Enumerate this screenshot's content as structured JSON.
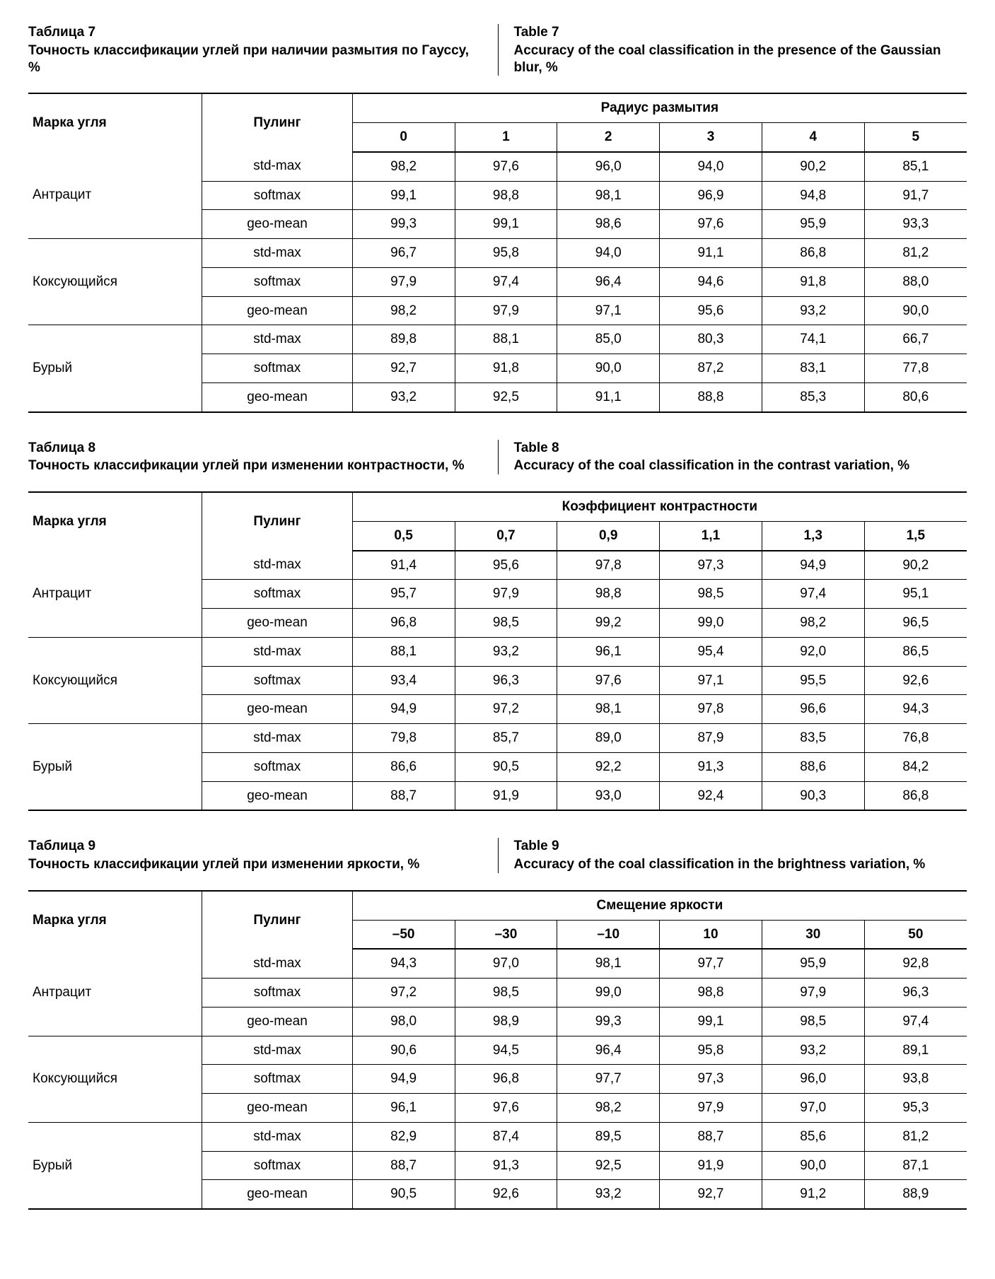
{
  "tables": [
    {
      "id": "t7",
      "caption_left_title": "Таблица 7",
      "caption_left_sub": "Точность классификации углей при наличии размытия по Гауссу, %",
      "caption_right_title": "Table 7",
      "caption_right_sub": "Accuracy of the coal classification in the presence of the Gaussian blur, %",
      "col_grade_label": "Марка угля",
      "col_pool_label": "Пулинг",
      "super_col_label": "Радиус размытия",
      "value_headers": [
        "0",
        "1",
        "2",
        "3",
        "4",
        "5"
      ],
      "groups": [
        {
          "grade": "Антрацит",
          "rows": [
            {
              "pool": "std-max",
              "vals": [
                "98,2",
                "97,6",
                "96,0",
                "94,0",
                "90,2",
                "85,1"
              ]
            },
            {
              "pool": "softmax",
              "vals": [
                "99,1",
                "98,8",
                "98,1",
                "96,9",
                "94,8",
                "91,7"
              ]
            },
            {
              "pool": "geo-mean",
              "vals": [
                "99,3",
                "99,1",
                "98,6",
                "97,6",
                "95,9",
                "93,3"
              ]
            }
          ]
        },
        {
          "grade": "Коксующийся",
          "rows": [
            {
              "pool": "std-max",
              "vals": [
                "96,7",
                "95,8",
                "94,0",
                "91,1",
                "86,8",
                "81,2"
              ]
            },
            {
              "pool": "softmax",
              "vals": [
                "97,9",
                "97,4",
                "96,4",
                "94,6",
                "91,8",
                "88,0"
              ]
            },
            {
              "pool": "geo-mean",
              "vals": [
                "98,2",
                "97,9",
                "97,1",
                "95,6",
                "93,2",
                "90,0"
              ]
            }
          ]
        },
        {
          "grade": "Бурый",
          "rows": [
            {
              "pool": "std-max",
              "vals": [
                "89,8",
                "88,1",
                "85,0",
                "80,3",
                "74,1",
                "66,7"
              ]
            },
            {
              "pool": "softmax",
              "vals": [
                "92,7",
                "91,8",
                "90,0",
                "87,2",
                "83,1",
                "77,8"
              ]
            },
            {
              "pool": "geo-mean",
              "vals": [
                "93,2",
                "92,5",
                "91,1",
                "88,8",
                "85,3",
                "80,6"
              ]
            }
          ]
        }
      ]
    },
    {
      "id": "t8",
      "caption_left_title": "Таблица 8",
      "caption_left_sub": "Точность классификации углей при изменении контрастности, %",
      "caption_right_title": "Table 8",
      "caption_right_sub": "Accuracy of the coal classification in the contrast variation, %",
      "col_grade_label": "Марка угля",
      "col_pool_label": "Пулинг",
      "super_col_label": "Коэффициент контрастности",
      "value_headers": [
        "0,5",
        "0,7",
        "0,9",
        "1,1",
        "1,3",
        "1,5"
      ],
      "groups": [
        {
          "grade": "Антрацит",
          "rows": [
            {
              "pool": "std-max",
              "vals": [
                "91,4",
                "95,6",
                "97,8",
                "97,3",
                "94,9",
                "90,2"
              ]
            },
            {
              "pool": "softmax",
              "vals": [
                "95,7",
                "97,9",
                "98,8",
                "98,5",
                "97,4",
                "95,1"
              ]
            },
            {
              "pool": "geo-mean",
              "vals": [
                "96,8",
                "98,5",
                "99,2",
                "99,0",
                "98,2",
                "96,5"
              ]
            }
          ]
        },
        {
          "grade": "Коксующийся",
          "rows": [
            {
              "pool": "std-max",
              "vals": [
                "88,1",
                "93,2",
                "96,1",
                "95,4",
                "92,0",
                "86,5"
              ]
            },
            {
              "pool": "softmax",
              "vals": [
                "93,4",
                "96,3",
                "97,6",
                "97,1",
                "95,5",
                "92,6"
              ]
            },
            {
              "pool": "geo-mean",
              "vals": [
                "94,9",
                "97,2",
                "98,1",
                "97,8",
                "96,6",
                "94,3"
              ]
            }
          ]
        },
        {
          "grade": "Бурый",
          "rows": [
            {
              "pool": "std-max",
              "vals": [
                "79,8",
                "85,7",
                "89,0",
                "87,9",
                "83,5",
                "76,8"
              ]
            },
            {
              "pool": "softmax",
              "vals": [
                "86,6",
                "90,5",
                "92,2",
                "91,3",
                "88,6",
                "84,2"
              ]
            },
            {
              "pool": "geo-mean",
              "vals": [
                "88,7",
                "91,9",
                "93,0",
                "92,4",
                "90,3",
                "86,8"
              ]
            }
          ]
        }
      ]
    },
    {
      "id": "t9",
      "caption_left_title": "Таблица 9",
      "caption_left_sub": "Точность классификации углей при изменении яркости, %",
      "caption_right_title": "Table 9",
      "caption_right_sub": "Accuracy of the coal classification in the brightness variation, %",
      "col_grade_label": "Марка угля",
      "col_pool_label": "Пулинг",
      "super_col_label": "Смещение яркости",
      "value_headers": [
        "–50",
        "–30",
        "–10",
        "10",
        "30",
        "50"
      ],
      "groups": [
        {
          "grade": "Антрацит",
          "rows": [
            {
              "pool": "std-max",
              "vals": [
                "94,3",
                "97,0",
                "98,1",
                "97,7",
                "95,9",
                "92,8"
              ]
            },
            {
              "pool": "softmax",
              "vals": [
                "97,2",
                "98,5",
                "99,0",
                "98,8",
                "97,9",
                "96,3"
              ]
            },
            {
              "pool": "geo-mean",
              "vals": [
                "98,0",
                "98,9",
                "99,3",
                "99,1",
                "98,5",
                "97,4"
              ]
            }
          ]
        },
        {
          "grade": "Коксующийся",
          "rows": [
            {
              "pool": "std-max",
              "vals": [
                "90,6",
                "94,5",
                "96,4",
                "95,8",
                "93,2",
                "89,1"
              ]
            },
            {
              "pool": "softmax",
              "vals": [
                "94,9",
                "96,8",
                "97,7",
                "97,3",
                "96,0",
                "93,8"
              ]
            },
            {
              "pool": "geo-mean",
              "vals": [
                "96,1",
                "97,6",
                "98,2",
                "97,9",
                "97,0",
                "95,3"
              ]
            }
          ]
        },
        {
          "grade": "Бурый",
          "rows": [
            {
              "pool": "std-max",
              "vals": [
                "82,9",
                "87,4",
                "89,5",
                "88,7",
                "85,6",
                "81,2"
              ]
            },
            {
              "pool": "softmax",
              "vals": [
                "88,7",
                "91,3",
                "92,5",
                "91,9",
                "90,0",
                "87,1"
              ]
            },
            {
              "pool": "geo-mean",
              "vals": [
                "90,5",
                "92,6",
                "93,2",
                "92,7",
                "91,2",
                "88,9"
              ]
            }
          ]
        }
      ]
    }
  ]
}
